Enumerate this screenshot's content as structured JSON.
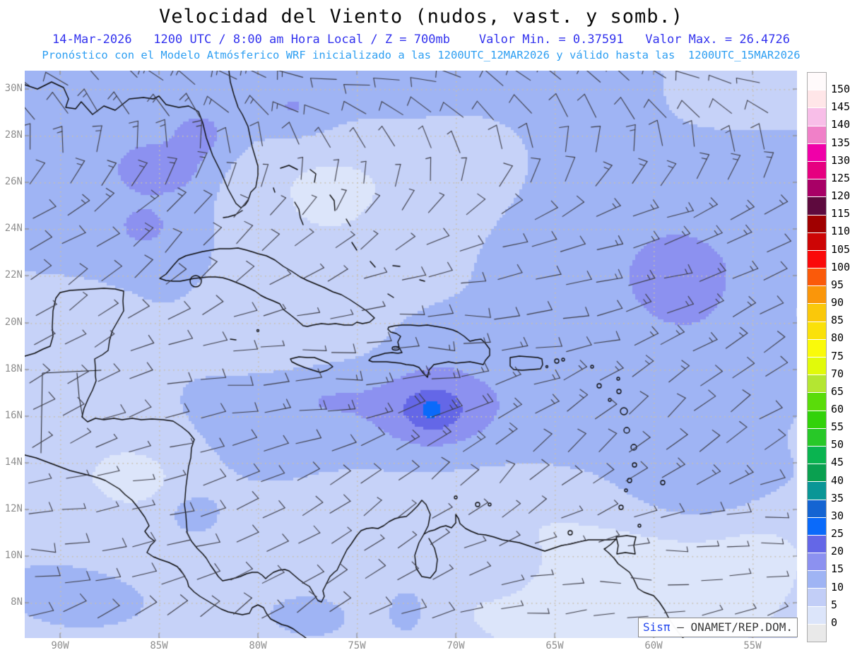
{
  "header": {
    "title": "Velocidad del Viento (nudos, vast. y somb.)",
    "subtitle": "14-Mar-2026   1200 UTC / 8:00 am Hora Local / Z = 700mb    Valor Min. = 0.37591   Valor Max. = 26.4726",
    "forecast_line": "Pronóstico con el Modelo Atmósferico WRF inicializado a las 1200UTC_12MAR2026 y válido hasta las  1200UTC_15MAR2026"
  },
  "map": {
    "lat_labels": [
      "30N",
      "28N",
      "26N",
      "24N",
      "22N",
      "20N",
      "18N",
      "16N",
      "14N",
      "12N",
      "10N",
      "8N"
    ],
    "lon_labels": [
      "90W",
      "85W",
      "80W",
      "75W",
      "70W",
      "65W",
      "60W",
      "55W"
    ],
    "shade_levels": [
      0,
      5,
      10,
      15,
      20,
      25,
      30
    ],
    "shade_colors": [
      "#DCE5FA",
      "#C6D2F8",
      "#9FB4F4",
      "#8C91F0",
      "#6467E7",
      "#0A6AFA"
    ],
    "grid_dot_color": "#C9C0AE",
    "barb_color": "#3C3C46",
    "coast_color": "#0A0A0A",
    "watermark": {
      "brand": "Sisπ",
      "text": " – ONAMET/REP.DOM."
    }
  },
  "colorbar": {
    "labels": [
      "150",
      "145",
      "140",
      "135",
      "130",
      "125",
      "120",
      "115",
      "110",
      "105",
      "100",
      "95",
      "90",
      "85",
      "80",
      "75",
      "70",
      "65",
      "60",
      "55",
      "50",
      "45",
      "40",
      "35",
      "30",
      "25",
      "20",
      "15",
      "10",
      "5",
      "0"
    ],
    "colors": [
      "#FFFAFB",
      "#FFE6E8",
      "#F8BEE8",
      "#F080C8",
      "#F000A8",
      "#E60080",
      "#A80066",
      "#5E0A3E",
      "#A00000",
      "#CD0505",
      "#FA0A0A",
      "#FA5A0A",
      "#FA960A",
      "#FAC80A",
      "#FAE10A",
      "#FAFA0A",
      "#E1FA0A",
      "#B4E632",
      "#5ADC0A",
      "#32D20A",
      "#28C828",
      "#0AB450",
      "#0AA050",
      "#0A9696",
      "#1464D2",
      "#0A6AFA",
      "#6467E7",
      "#8C91F0",
      "#9FB4F4",
      "#C2CEF7",
      "#DCE5FA",
      "#E9E9E9"
    ]
  },
  "chart_data": {
    "type": "heatmap",
    "title": "Velocidad del Viento (nudos, vast. y somb.)",
    "variable": "wind speed with wind barbs and shading",
    "units": "nudos",
    "level": "700mb",
    "valid_time": "14-Mar-2026 1200 UTC / 8:00 am Hora Local",
    "value_min": 0.37591,
    "value_max": 26.4726,
    "model": "WRF",
    "initialized": "1200UTC_12MAR2026",
    "valid_until": "1200UTC_15MAR2026",
    "source": "ONAMET/REP.DOM.",
    "lat_ticks": [
      "30N",
      "28N",
      "26N",
      "24N",
      "22N",
      "20N",
      "18N",
      "16N",
      "14N",
      "12N",
      "10N",
      "8N"
    ],
    "lon_ticks": [
      "90W",
      "85W",
      "80W",
      "75W",
      "70W",
      "65W",
      "60W",
      "55W"
    ],
    "colorbar_levels_knots": [
      0,
      5,
      10,
      15,
      20,
      25,
      30,
      35,
      40,
      45,
      50,
      55,
      60,
      65,
      70,
      75,
      80,
      85,
      90,
      95,
      100,
      105,
      110,
      115,
      120,
      125,
      130,
      135,
      140,
      145,
      150
    ]
  }
}
